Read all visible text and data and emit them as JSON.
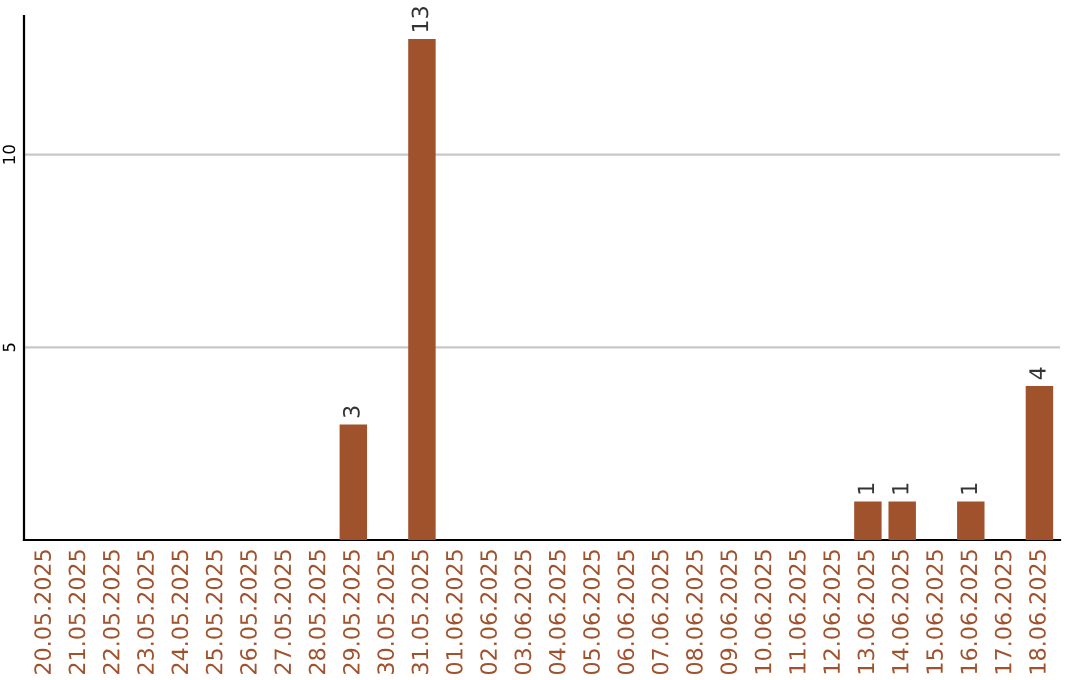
{
  "chart_data": {
    "type": "bar",
    "categories": [
      "20.05.2025",
      "21.05.2025",
      "22.05.2025",
      "23.05.2025",
      "24.05.2025",
      "25.05.2025",
      "26.05.2025",
      "27.05.2025",
      "28.05.2025",
      "29.05.2025",
      "30.05.2025",
      "31.05.2025",
      "01.06.2025",
      "02.06.2025",
      "03.06.2025",
      "04.06.2025",
      "05.06.2025",
      "06.06.2025",
      "07.06.2025",
      "08.06.2025",
      "09.06.2025",
      "10.06.2025",
      "11.06.2025",
      "12.06.2025",
      "13.06.2025",
      "14.06.2025",
      "15.06.2025",
      "16.06.2025",
      "17.06.2025",
      "18.06.2025"
    ],
    "values": [
      0,
      0,
      0,
      0,
      0,
      0,
      0,
      0,
      0,
      3,
      0,
      13,
      0,
      0,
      0,
      0,
      0,
      0,
      0,
      0,
      0,
      0,
      0,
      0,
      1,
      1,
      0,
      1,
      0,
      4
    ],
    "value_labels": [
      null,
      null,
      null,
      null,
      null,
      null,
      null,
      null,
      null,
      "3",
      null,
      "13",
      null,
      null,
      null,
      null,
      null,
      null,
      null,
      null,
      null,
      null,
      null,
      null,
      "1",
      "1",
      null,
      "1",
      null,
      "4"
    ],
    "color": "#a0522d",
    "ylim": [
      0,
      13.6
    ],
    "yticks": [
      5,
      10
    ],
    "grid": "y"
  }
}
